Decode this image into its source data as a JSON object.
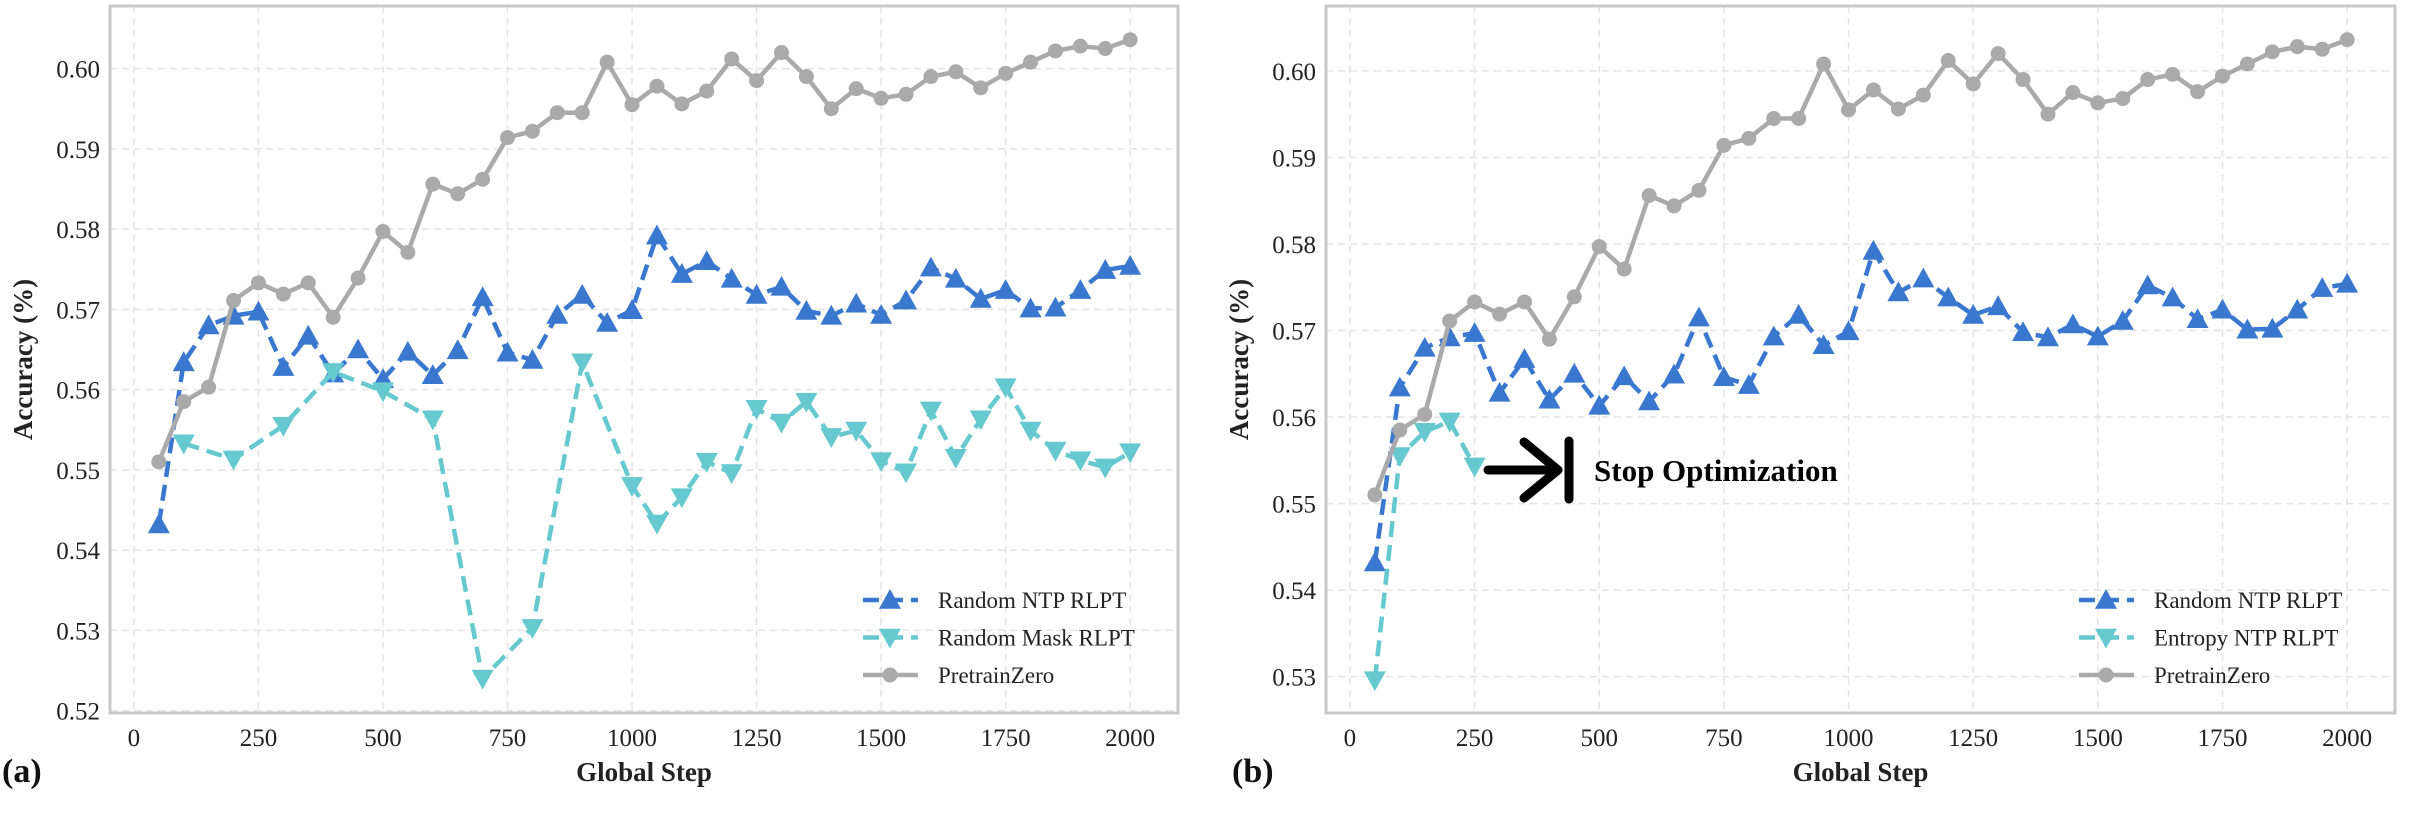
{
  "chart_data": [
    {
      "type": "line",
      "panel_label": "(a)",
      "xlabel": "Global Step",
      "ylabel": "Accuracy (%)",
      "xlim": [
        -48,
        2096
      ],
      "ylim": [
        0.5197,
        0.6078
      ],
      "xticks": [
        0,
        250,
        500,
        750,
        1000,
        1250,
        1500,
        1750,
        2000
      ],
      "yticks": [
        0.52,
        0.53,
        0.54,
        0.55,
        0.56,
        0.57,
        0.58,
        0.59,
        0.6
      ],
      "ytick_labels": [
        "0.52",
        "0.53",
        "0.54",
        "0.55",
        "0.56",
        "0.57",
        "0.58",
        "0.59",
        "0.60"
      ],
      "grid": true,
      "legend_position": "lower-right",
      "series": [
        {
          "name": "Random NTP RLPT",
          "color": "#3a78d0",
          "marker": "triangle-up",
          "linestyle": "dashed",
          "x": [
            50,
            100,
            150,
            200,
            250,
            300,
            350,
            400,
            450,
            500,
            550,
            600,
            650,
            700,
            750,
            800,
            850,
            900,
            950,
            1000,
            1050,
            1100,
            1150,
            1200,
            1250,
            1300,
            1350,
            1400,
            1450,
            1500,
            1550,
            1600,
            1650,
            1700,
            1750,
            1800,
            1850,
            1900,
            1950,
            2000
          ],
          "y": [
            0.5432,
            0.5634,
            0.568,
            0.5692,
            0.5697,
            0.5628,
            0.5667,
            0.562,
            0.565,
            0.5613,
            0.5647,
            0.5618,
            0.5649,
            0.5715,
            0.5646,
            0.5637,
            0.5693,
            0.5718,
            0.5683,
            0.5699,
            0.5792,
            0.5744,
            0.576,
            0.5738,
            0.5718,
            0.5728,
            0.5698,
            0.5692,
            0.5707,
            0.5693,
            0.5711,
            0.5752,
            0.5738,
            0.5713,
            0.5724,
            0.5701,
            0.5702,
            0.5724,
            0.5749,
            0.5754
          ]
        },
        {
          "name": "Random Mask RLPT",
          "color": "#66c9cf",
          "marker": "triangle-down",
          "linestyle": "dashed",
          "x": [
            100,
            200,
            300,
            400,
            500,
            600,
            700,
            800,
            900,
            1000,
            1050,
            1100,
            1150,
            1200,
            1250,
            1300,
            1350,
            1400,
            1450,
            1500,
            1550,
            1600,
            1650,
            1700,
            1750,
            1800,
            1850,
            1900,
            1950,
            2000
          ],
          "y": [
            0.5533,
            0.5513,
            0.5555,
            0.5622,
            0.5598,
            0.5563,
            0.524,
            0.5303,
            0.5634,
            0.548,
            0.5433,
            0.5466,
            0.551,
            0.5496,
            0.5576,
            0.5559,
            0.5585,
            0.5541,
            0.5549,
            0.5511,
            0.5497,
            0.5574,
            0.5515,
            0.5563,
            0.5603,
            0.5549,
            0.5524,
            0.5512,
            0.5503,
            0.5522
          ]
        },
        {
          "name": "PretrainZero",
          "color": "#aaaaaa",
          "marker": "circle",
          "linestyle": "solid",
          "x": [
            50,
            100,
            150,
            200,
            250,
            300,
            350,
            400,
            450,
            500,
            550,
            600,
            650,
            700,
            750,
            800,
            850,
            900,
            950,
            1000,
            1050,
            1100,
            1150,
            1200,
            1250,
            1300,
            1350,
            1400,
            1450,
            1500,
            1550,
            1600,
            1650,
            1700,
            1750,
            1800,
            1850,
            1900,
            1950,
            2000
          ],
          "y": [
            0.551,
            0.5585,
            0.5603,
            0.5711,
            0.5733,
            0.5719,
            0.5733,
            0.569,
            0.5739,
            0.5797,
            0.5771,
            0.5856,
            0.5844,
            0.5862,
            0.5914,
            0.5922,
            0.5945,
            0.5945,
            0.6008,
            0.5955,
            0.5978,
            0.5956,
            0.5972,
            0.6012,
            0.5985,
            0.602,
            0.599,
            0.595,
            0.5975,
            0.5963,
            0.5968,
            0.599,
            0.5996,
            0.5976,
            0.5994,
            0.6008,
            0.6022,
            0.6028,
            0.6025,
            0.6036
          ]
        }
      ]
    },
    {
      "type": "line",
      "panel_label": "(b)",
      "xlabel": "Global Step",
      "ylabel": "Accuracy (%)",
      "xlim": [
        -48,
        2096
      ],
      "ylim": [
        0.5258,
        0.6075
      ],
      "xticks": [
        0,
        250,
        500,
        750,
        1000,
        1250,
        1500,
        1750,
        2000
      ],
      "yticks": [
        0.53,
        0.54,
        0.55,
        0.56,
        0.57,
        0.58,
        0.59,
        0.6
      ],
      "ytick_labels": [
        "0.53",
        "0.54",
        "0.55",
        "0.56",
        "0.57",
        "0.58",
        "0.59",
        "0.60"
      ],
      "grid": true,
      "legend_position": "lower-right",
      "annotation": "Stop Optimization",
      "series": [
        {
          "name": "Random NTP RLPT",
          "color": "#3a78d0",
          "marker": "triangle-up",
          "linestyle": "dashed",
          "x": [
            50,
            100,
            150,
            200,
            250,
            300,
            350,
            400,
            450,
            500,
            550,
            600,
            650,
            700,
            750,
            800,
            850,
            900,
            950,
            1000,
            1050,
            1100,
            1150,
            1200,
            1250,
            1300,
            1350,
            1400,
            1450,
            1500,
            1550,
            1600,
            1650,
            1700,
            1750,
            1800,
            1850,
            1900,
            1950,
            2000
          ],
          "y": [
            0.5432,
            0.5634,
            0.568,
            0.5692,
            0.5697,
            0.5628,
            0.5667,
            0.562,
            0.565,
            0.5613,
            0.5647,
            0.5618,
            0.5649,
            0.5715,
            0.5646,
            0.5637,
            0.5693,
            0.5718,
            0.5683,
            0.5699,
            0.5792,
            0.5744,
            0.576,
            0.5738,
            0.5718,
            0.5728,
            0.5698,
            0.5692,
            0.5707,
            0.5693,
            0.5711,
            0.5752,
            0.5738,
            0.5713,
            0.5724,
            0.5701,
            0.5702,
            0.5724,
            0.5749,
            0.5754
          ]
        },
        {
          "name": "Entropy NTP RLPT",
          "color": "#66c9cf",
          "marker": "triangle-down",
          "linestyle": "dashed",
          "x": [
            50,
            100,
            150,
            200,
            250
          ],
          "y": [
            0.5296,
            0.5555,
            0.5583,
            0.5595,
            0.5543
          ]
        },
        {
          "name": "PretrainZero",
          "color": "#aaaaaa",
          "marker": "circle",
          "linestyle": "solid",
          "x": [
            50,
            100,
            150,
            200,
            250,
            300,
            350,
            400,
            450,
            500,
            550,
            600,
            650,
            700,
            750,
            800,
            850,
            900,
            950,
            1000,
            1050,
            1100,
            1150,
            1200,
            1250,
            1300,
            1350,
            1400,
            1450,
            1500,
            1550,
            1600,
            1650,
            1700,
            1750,
            1800,
            1850,
            1900,
            1950,
            2000
          ],
          "y": [
            0.551,
            0.5585,
            0.5603,
            0.5711,
            0.5733,
            0.5719,
            0.5733,
            0.569,
            0.5739,
            0.5797,
            0.5771,
            0.5856,
            0.5844,
            0.5862,
            0.5914,
            0.5922,
            0.5945,
            0.5945,
            0.6008,
            0.5955,
            0.5978,
            0.5956,
            0.5972,
            0.6012,
            0.5985,
            0.602,
            0.599,
            0.595,
            0.5975,
            0.5963,
            0.5968,
            0.599,
            0.5996,
            0.5976,
            0.5994,
            0.6008,
            0.6022,
            0.6028,
            0.6025,
            0.6036
          ]
        }
      ]
    }
  ]
}
